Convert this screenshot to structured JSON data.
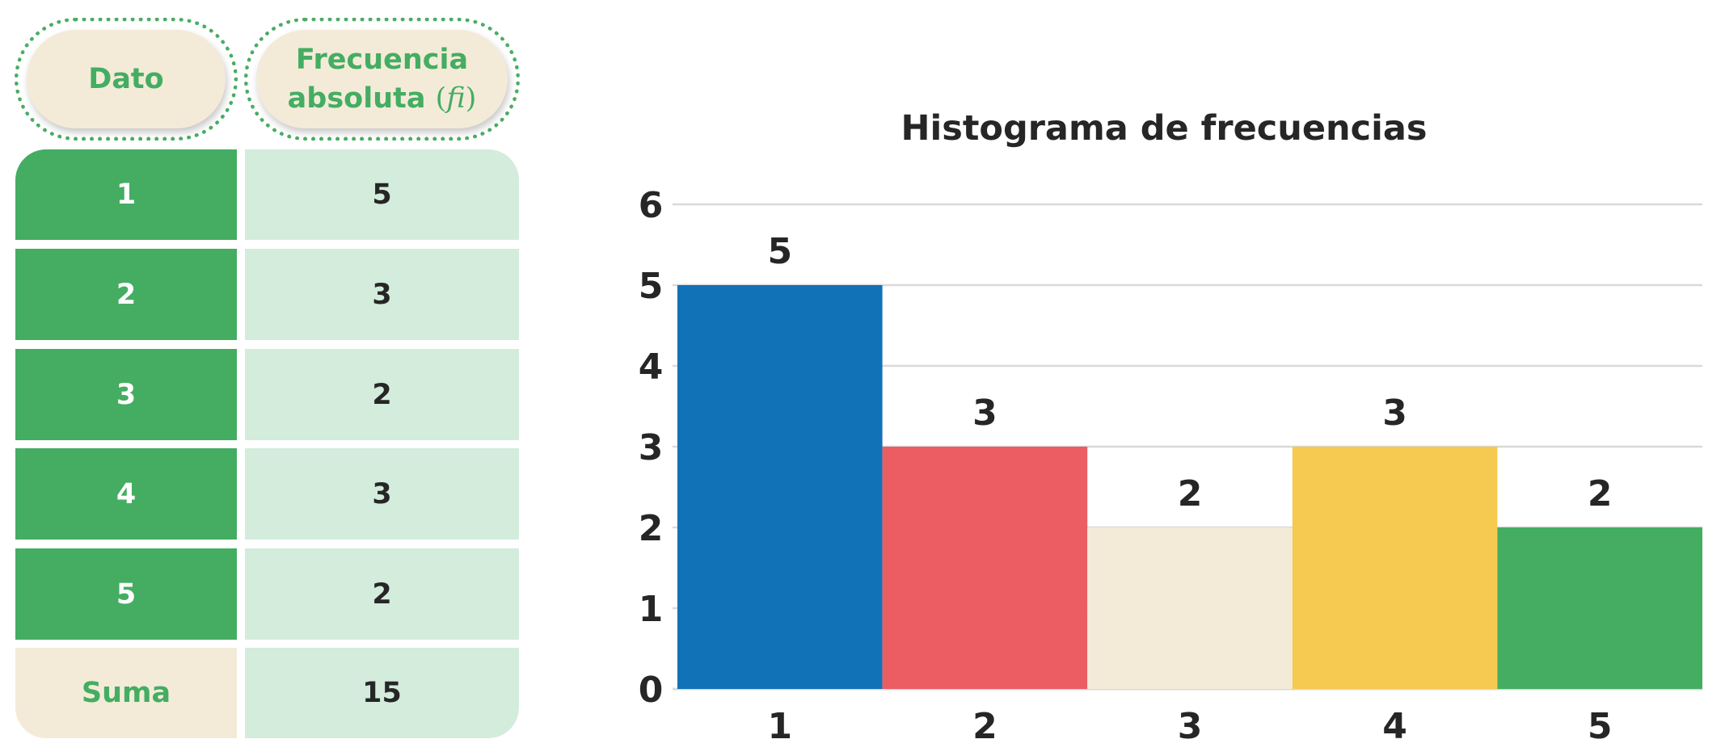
{
  "table": {
    "header_dato": "Dato",
    "header_frecuencia": "Frecuencia",
    "header_absoluta": "absoluta",
    "header_formula": "fi",
    "rows": [
      {
        "dato": "1",
        "fi": "5"
      },
      {
        "dato": "2",
        "fi": "3"
      },
      {
        "dato": "3",
        "fi": "2"
      },
      {
        "dato": "4",
        "fi": "3"
      },
      {
        "dato": "5",
        "fi": "2"
      }
    ],
    "suma_label": "Suma",
    "suma_value": "15"
  },
  "colors": {
    "green": "#44ad62",
    "light_green": "#d3ecdc",
    "cream": "#f3ebd8",
    "blue": "#1172b7",
    "red": "#ec5d63",
    "yellow": "#f6ca50"
  },
  "chart_data": {
    "type": "bar",
    "title": "Histograma de frecuencias",
    "categories": [
      "1",
      "2",
      "3",
      "4",
      "5"
    ],
    "values": [
      5,
      3,
      2,
      3,
      2
    ],
    "bar_colors": [
      "#1172b7",
      "#ec5d63",
      "#f3ebd8",
      "#f6ca50",
      "#44ad62"
    ],
    "data_labels": [
      "5",
      "3",
      "2",
      "3",
      "2"
    ],
    "ylim": [
      0,
      6
    ],
    "yticks": [
      "0",
      "1",
      "2",
      "3",
      "4",
      "5",
      "6"
    ],
    "xlabel": "",
    "ylabel": "",
    "grid": true,
    "bar_gap": 0
  }
}
